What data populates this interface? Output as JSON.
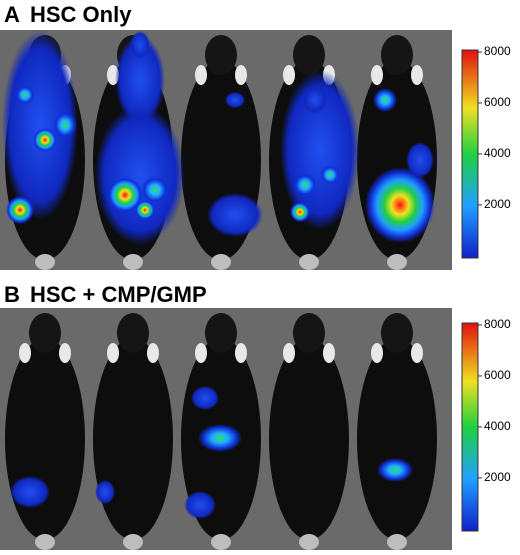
{
  "panels": [
    {
      "letter": "A",
      "title": "HSC Only",
      "colorbar": {
        "ticks": [
          2000,
          4000,
          6000,
          8000
        ]
      }
    },
    {
      "letter": "B",
      "title": "HSC + CMP/GMP",
      "colorbar": {
        "ticks": [
          2000,
          4000,
          6000,
          8000
        ]
      }
    }
  ]
}
